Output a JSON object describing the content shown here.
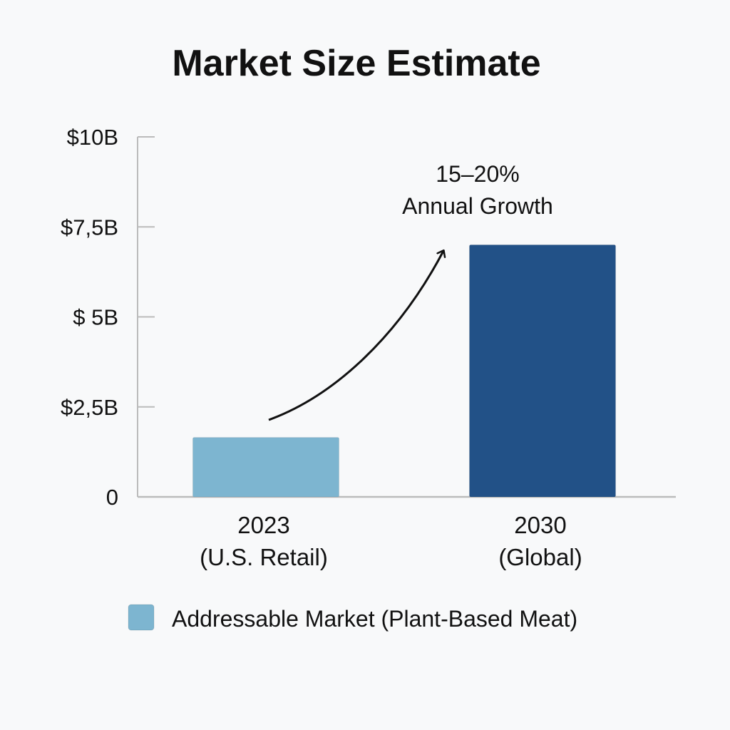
{
  "chart_data": {
    "type": "bar",
    "title": "Market Size Estimate",
    "categories": [
      {
        "year": "2023",
        "scope": "(U.S. Retail)"
      },
      {
        "year": "2030",
        "scope": "(Global)"
      }
    ],
    "values": [
      1.65,
      7.0
    ],
    "units": "billion USD",
    "ylim": [
      0,
      10
    ],
    "yticks": [
      {
        "value": 0,
        "label": "0"
      },
      {
        "value": 2.5,
        "label": "$2,5B"
      },
      {
        "value": 5,
        "label": "$ 5B"
      },
      {
        "value": 7.5,
        "label": "$7,5B"
      },
      {
        "value": 10,
        "label": "$10B"
      }
    ],
    "bar_colors": [
      "#7db5d0",
      "#225187"
    ],
    "annotation": {
      "line1": "15–20%",
      "line2": "Annual Growth"
    },
    "legend": {
      "label": "Addressable Market (Plant-Based Meat)",
      "color": "#7db5d0",
      "position": "bottom"
    },
    "xlabel": "",
    "ylabel": "",
    "grid": false
  }
}
